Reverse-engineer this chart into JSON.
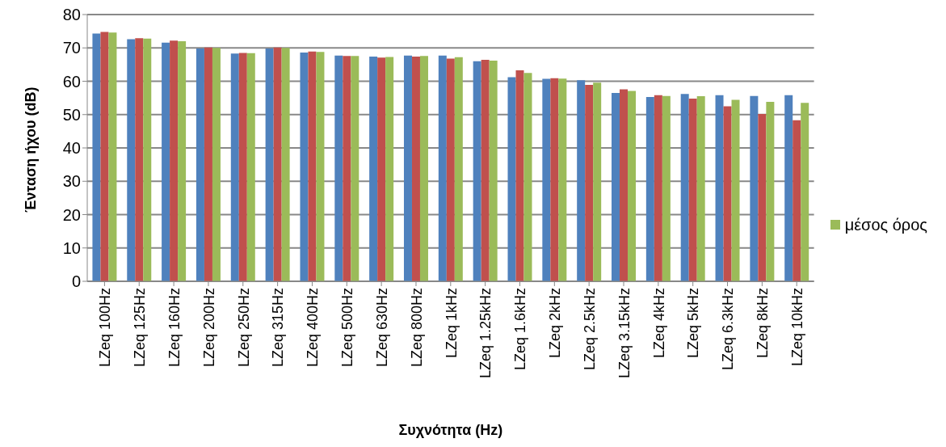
{
  "chart_data": {
    "type": "bar",
    "xlabel": "Συχνότητα (Hz)",
    "ylabel": "Ένταση ήχου (dB)",
    "categories": [
      "LZeq 100Hz",
      "LZeq 125Hz",
      "LZeq 160Hz",
      "LZeq 200Hz",
      "LZeq 250Hz",
      "LZeq 315Hz",
      "LZeq 400Hz",
      "LZeq 500Hz",
      "LZeq 630Hz",
      "LZeq 800Hz",
      "LZeq 1kHz",
      "LZeq 1.25kHz",
      "LZeq 1.6kHz",
      "LZeq 2kHz",
      "LZeq 2.5kHz",
      "LZeq 3.15kHz",
      "LZeq 4kHz",
      "LZeq 5kHz",
      "LZeq 6.3kHz",
      "LZeq 8kHz",
      "LZeq 10kHz"
    ],
    "series": [
      {
        "color": "#4f81bd",
        "values": [
          74.3,
          72.6,
          71.6,
          69.8,
          68.3,
          69.8,
          68.6,
          67.7,
          67.4,
          67.7,
          67.7,
          66,
          61.2,
          60.7,
          60.3,
          56.5,
          55.3,
          56.2,
          55.8,
          55.6,
          55.8
        ]
      },
      {
        "color": "#c0504d",
        "values": [
          74.8,
          72.9,
          72.2,
          70.1,
          68.5,
          70.1,
          68.9,
          67.6,
          67.1,
          67.4,
          66.8,
          66.4,
          63.3,
          60.9,
          58.9,
          57.6,
          55.8,
          54.8,
          52.5,
          50.2,
          48.3
        ]
      },
      {
        "name": "μέσος όρος",
        "color": "#9bbb59",
        "values": [
          74.6,
          72.8,
          72,
          70,
          68.4,
          70,
          68.8,
          67.6,
          67.3,
          67.6,
          67.2,
          66.2,
          62.5,
          60.8,
          59.6,
          57.1,
          55.6,
          55.5,
          54.4,
          53.8,
          53.5
        ]
      }
    ],
    "ylim": [
      0,
      80
    ],
    "yticks": [
      0,
      10,
      20,
      30,
      40,
      50,
      60,
      70,
      80
    ],
    "grid": "y",
    "legend": "right"
  }
}
